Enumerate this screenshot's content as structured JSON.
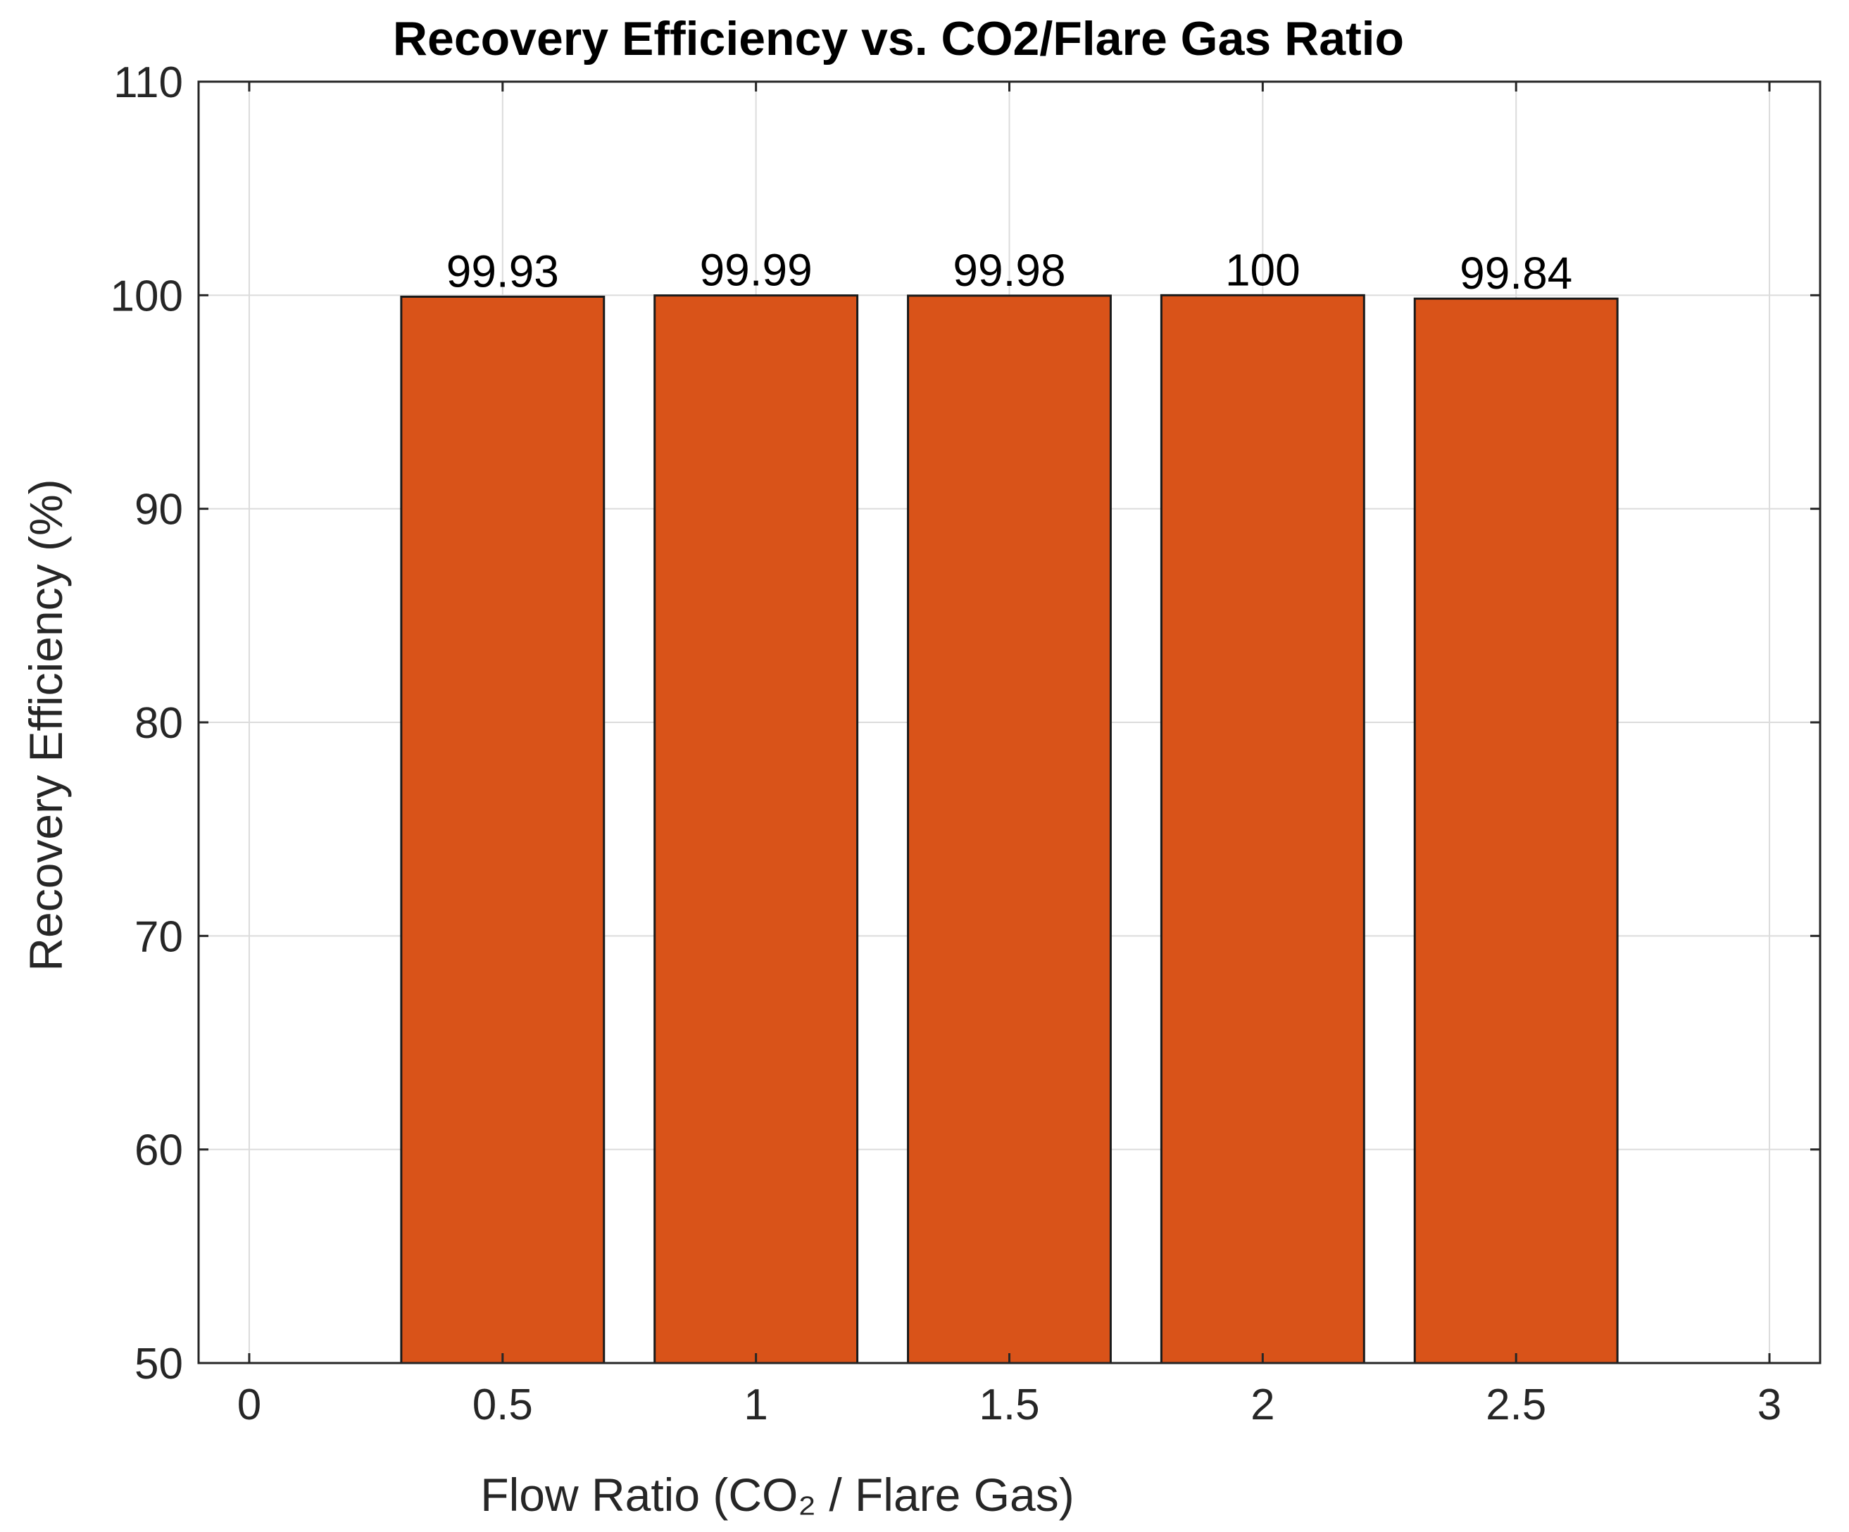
{
  "chart_data": {
    "type": "bar",
    "title": "Recovery Efficiency vs. CO2/Flare Gas Ratio",
    "xlabel": "Flow Ratio (CO₂ / Flare Gas)",
    "ylabel": "Recovery Efficiency (%)",
    "x": [
      0.5,
      1,
      1.5,
      2,
      2.5
    ],
    "values": [
      99.93,
      99.99,
      99.98,
      100,
      99.84
    ],
    "data_labels": [
      "99.93",
      "99.99",
      "99.98",
      "100",
      "99.84"
    ],
    "xlim": [
      -0.1,
      3.1
    ],
    "ylim": [
      50,
      110
    ],
    "xticks": [
      0,
      0.5,
      1,
      1.5,
      2,
      2.5,
      3
    ],
    "xtick_labels": [
      "0",
      "0.5",
      "1",
      "1.5",
      "2",
      "2.5",
      "3"
    ],
    "yticks": [
      50,
      60,
      70,
      80,
      90,
      100,
      110
    ],
    "ytick_labels": [
      "50",
      "60",
      "70",
      "80",
      "90",
      "100",
      "110"
    ],
    "bar_width": 0.4,
    "grid": true,
    "colors": {
      "bar_fill": "#D95319",
      "bar_edge": "#1a1a1a",
      "grid": "#dcdcdc",
      "axis": "#262626",
      "background": "#ffffff"
    }
  }
}
